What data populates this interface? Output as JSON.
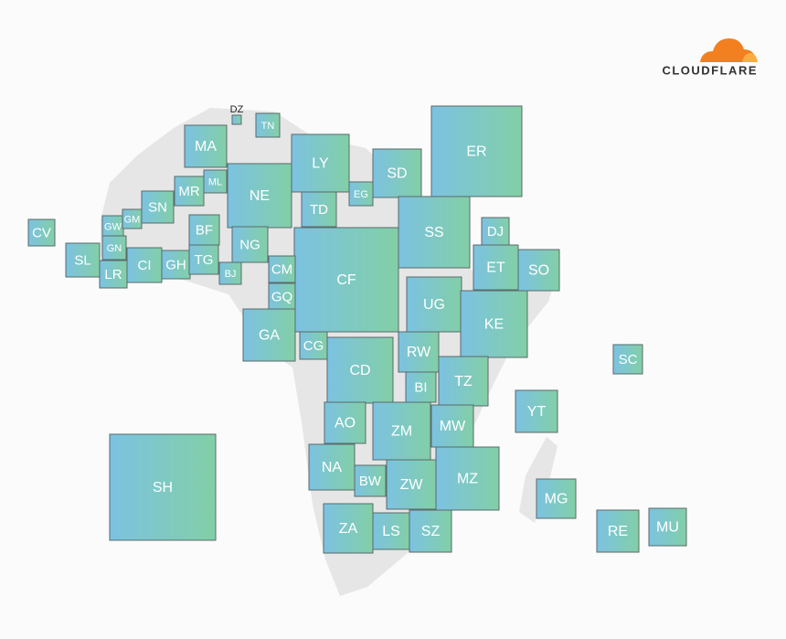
{
  "logo": {
    "text": "CLOUDFLARE"
  },
  "nodes": [
    {
      "label": "DZ"
    },
    {
      "label": "TN"
    },
    {
      "label": "MA"
    },
    {
      "label": "LY"
    },
    {
      "label": "ER"
    },
    {
      "label": "SD"
    },
    {
      "label": "NE"
    },
    {
      "label": "MR"
    },
    {
      "label": "ML"
    },
    {
      "label": "SN"
    },
    {
      "label": "GW"
    },
    {
      "label": "GM"
    },
    {
      "label": "EG"
    },
    {
      "label": "TD"
    },
    {
      "label": "SS"
    },
    {
      "label": "CV"
    },
    {
      "label": "BF"
    },
    {
      "label": "DJ"
    },
    {
      "label": "NG"
    },
    {
      "label": "GN"
    },
    {
      "label": "SL"
    },
    {
      "label": "LR"
    },
    {
      "label": "CI"
    },
    {
      "label": "GH"
    },
    {
      "label": "TG"
    },
    {
      "label": "ET"
    },
    {
      "label": "SO"
    },
    {
      "label": "CF"
    },
    {
      "label": "CM"
    },
    {
      "label": "BJ"
    },
    {
      "label": "UG"
    },
    {
      "label": "GQ"
    },
    {
      "label": "KE"
    },
    {
      "label": "GA"
    },
    {
      "label": "CG"
    },
    {
      "label": "RW"
    },
    {
      "label": "CD"
    },
    {
      "label": "SC"
    },
    {
      "label": "BI"
    },
    {
      "label": "TZ"
    },
    {
      "label": "YT"
    },
    {
      "label": "AO"
    },
    {
      "label": "ZM"
    },
    {
      "label": "MW"
    },
    {
      "label": "SH"
    },
    {
      "label": "NA"
    },
    {
      "label": "MZ"
    },
    {
      "label": "BW"
    },
    {
      "label": "ZW"
    },
    {
      "label": "MG"
    },
    {
      "label": "ZA"
    },
    {
      "label": "LS"
    },
    {
      "label": "SZ"
    },
    {
      "label": "RE"
    },
    {
      "label": "MU"
    }
  ]
}
